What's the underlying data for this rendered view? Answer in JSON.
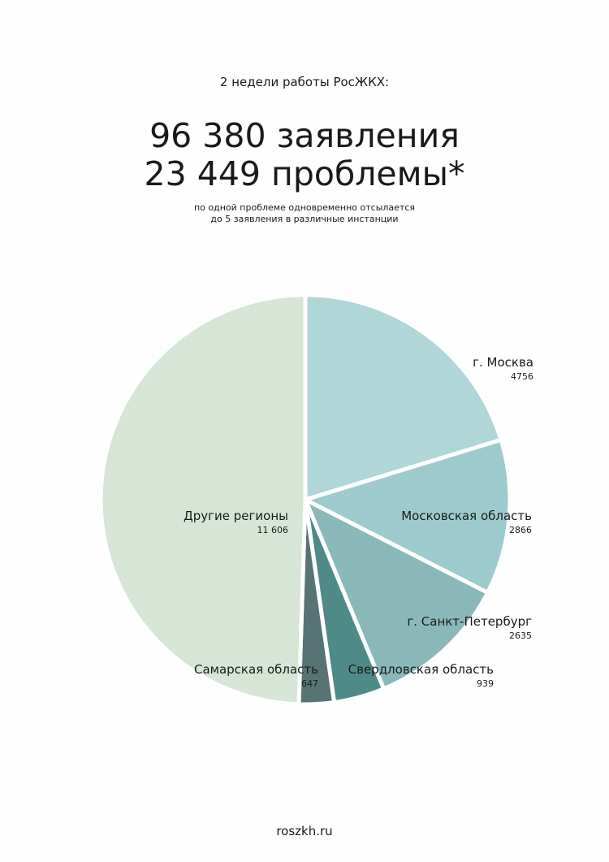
{
  "header": {
    "kicker": "2 недели работы РосЖКХ:",
    "line1": "96 380 заявления",
    "line2": "23 449 проблемы*",
    "note_line1": "по одной проблеме одновременно отсылается",
    "note_line2": "до 5 заявления в различные инстанции"
  },
  "footer": {
    "site": "roszkh.ru"
  },
  "colors": {
    "moscow": "#b0d6d7",
    "moscow_region": "#9dcbcd",
    "spb": "#8ab8b9",
    "sverdlovsk": "#4e8b88",
    "samara": "#577374",
    "other": "#d6e5d6",
    "separator": "#ffffff"
  },
  "chart_data": {
    "type": "pie",
    "start": "12 o'clock, clockwise",
    "slices": [
      {
        "label": "г. Москва",
        "value": 4756,
        "value_label": "4756",
        "color_key": "moscow"
      },
      {
        "label": "Московская область",
        "value": 2866,
        "value_label": "2866",
        "color_key": "moscow_region"
      },
      {
        "label": "г. Санкт-Петербург",
        "value": 2635,
        "value_label": "2635",
        "color_key": "spb"
      },
      {
        "label": "Свердловская область",
        "value": 939,
        "value_label": "939",
        "color_key": "sverdlovsk"
      },
      {
        "label": "Самарская область",
        "value": 647,
        "value_label": "647",
        "color_key": "samara"
      },
      {
        "label": "Другие регионы",
        "value": 11606,
        "value_label": "11 606",
        "color_key": "other"
      }
    ]
  }
}
